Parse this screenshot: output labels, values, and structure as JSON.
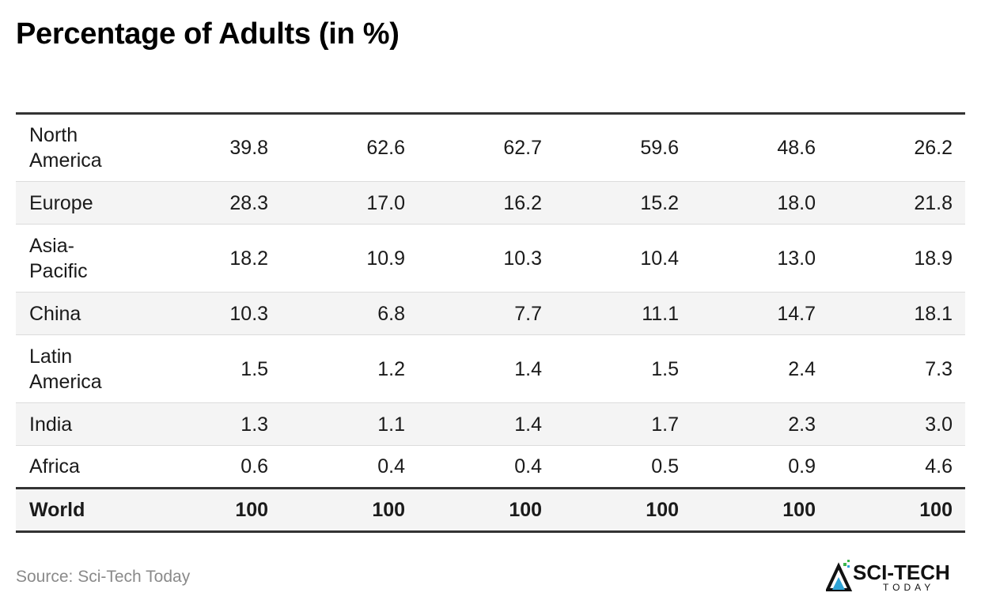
{
  "title": "Percentage of Adults (in %)",
  "chart_data": {
    "type": "table",
    "title": "Percentage of Adults (in %)",
    "columns": [
      "",
      "",
      "",
      "",
      "",
      ""
    ],
    "rows": [
      {
        "label": "North America",
        "values": [
          "39.8",
          "62.6",
          "62.7",
          "59.6",
          "48.6",
          "26.2"
        ]
      },
      {
        "label": "Europe",
        "values": [
          "28.3",
          "17.0",
          "16.2",
          "15.2",
          "18.0",
          "21.8"
        ]
      },
      {
        "label": "Asia-Pacific",
        "values": [
          "18.2",
          "10.9",
          "10.3",
          "10.4",
          "13.0",
          "18.9"
        ]
      },
      {
        "label": "China",
        "values": [
          "10.3",
          "6.8",
          "7.7",
          "11.1",
          "14.7",
          "18.1"
        ]
      },
      {
        "label": "Latin America",
        "values": [
          "1.5",
          "1.2",
          "1.4",
          "1.5",
          "2.4",
          "7.3"
        ]
      },
      {
        "label": "India",
        "values": [
          "1.3",
          "1.1",
          "1.4",
          "1.7",
          "2.3",
          "3.0"
        ]
      },
      {
        "label": "Africa",
        "values": [
          "0.6",
          "0.4",
          "0.4",
          "0.5",
          "0.9",
          "4.6"
        ]
      }
    ],
    "total": {
      "label": "World",
      "values": [
        "100",
        "100",
        "100",
        "100",
        "100",
        "100"
      ]
    }
  },
  "source": "Source: Sci-Tech Today",
  "logo": {
    "brand": "SCI-TECH",
    "sub": "TODAY",
    "colors": {
      "dark": "#111111",
      "accent": "#2ea3d6",
      "green": "#3bb54a"
    }
  }
}
